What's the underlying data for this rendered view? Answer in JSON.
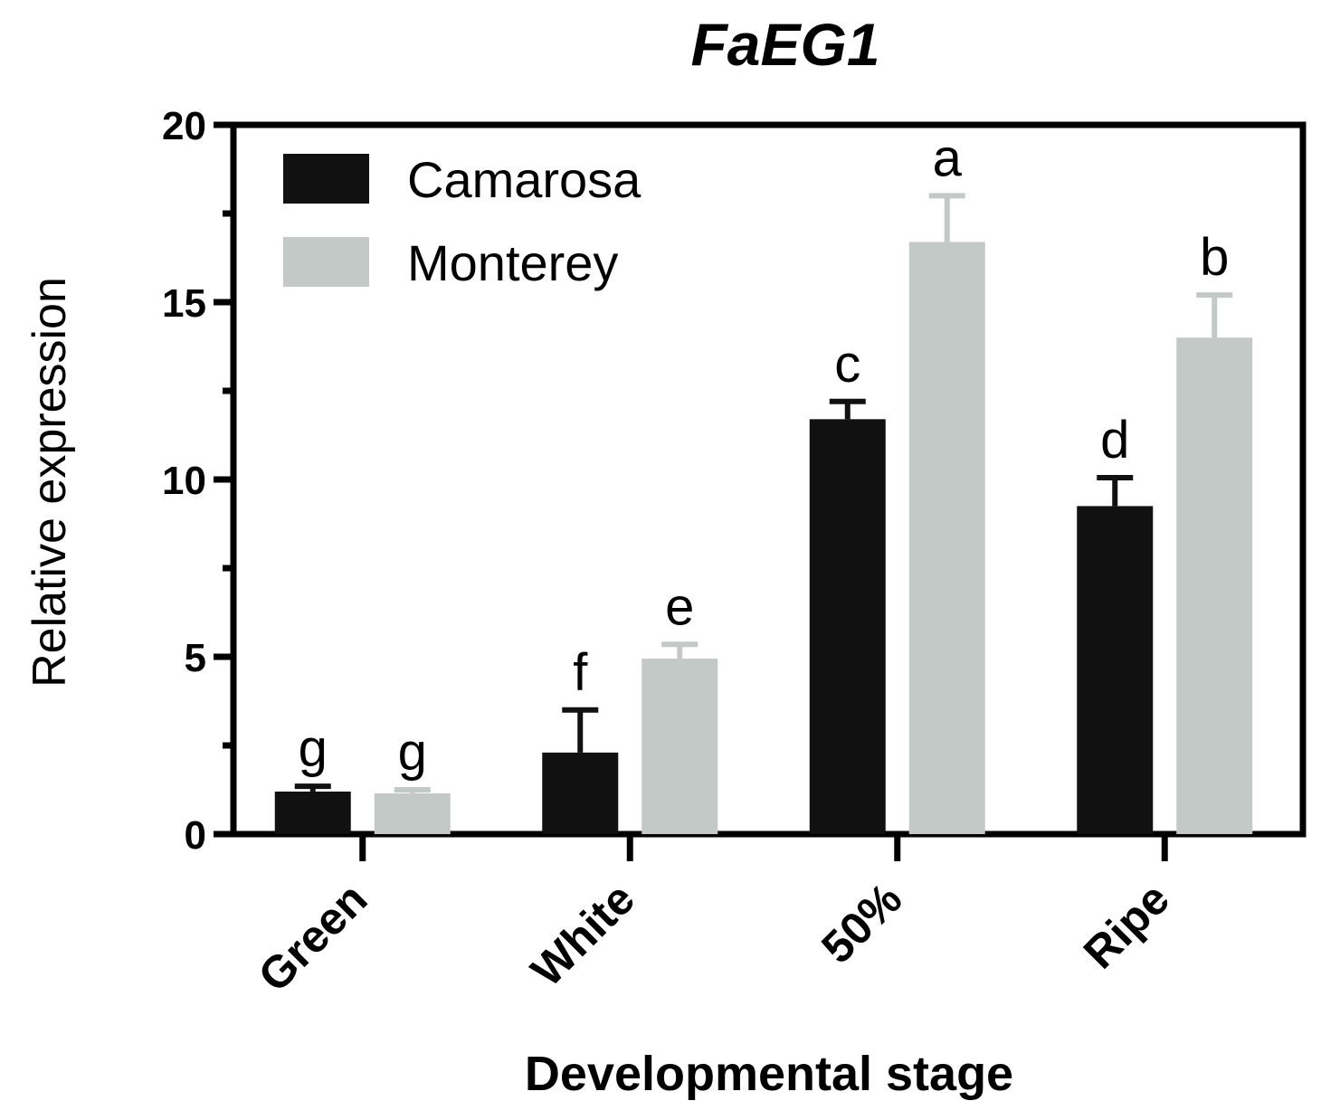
{
  "chart_data": {
    "type": "bar",
    "title": "FaEG1",
    "xlabel": "Developmental stage",
    "ylabel": "Relative expression",
    "ylim": [
      0,
      20
    ],
    "yticks": [
      0,
      5,
      10,
      15,
      20
    ],
    "categories": [
      "Green",
      "White",
      "50%",
      "Ripe"
    ],
    "series": [
      {
        "name": "Camarosa",
        "color": "#111111",
        "values": [
          1.2,
          2.3,
          11.7,
          9.25
        ],
        "errors": [
          0.15,
          1.2,
          0.5,
          0.8
        ],
        "letters": [
          "g",
          "f",
          "c",
          "d"
        ]
      },
      {
        "name": "Monterey",
        "color": "#c3c9c6",
        "values": [
          1.15,
          4.95,
          16.7,
          14.0
        ],
        "errors": [
          0.1,
          0.4,
          1.3,
          1.2
        ],
        "letters": [
          "g",
          "e",
          "a",
          "b"
        ]
      }
    ],
    "legend_position": "top-left",
    "grid": false
  }
}
